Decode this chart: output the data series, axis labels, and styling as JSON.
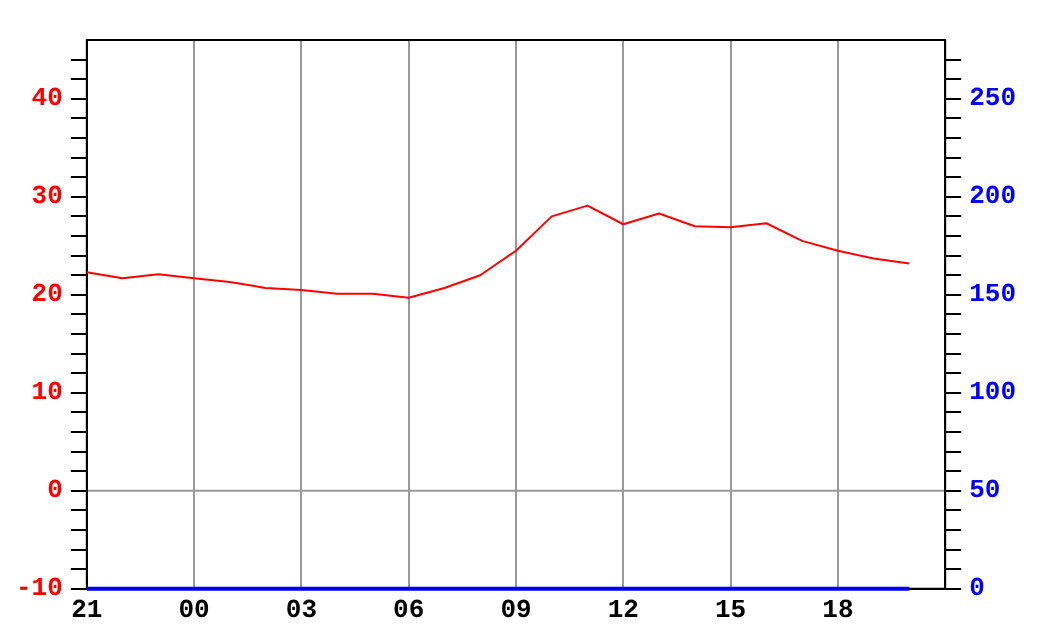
{
  "chart_data": {
    "type": "line",
    "categories": [
      "21",
      null,
      null,
      "00",
      null,
      null,
      "03",
      null,
      null,
      "06",
      null,
      null,
      "09",
      null,
      null,
      "12",
      null,
      null,
      "15",
      null,
      null,
      "18",
      null,
      null,
      null
    ],
    "series": [
      {
        "color": "#ff0000",
        "values": [
          22.3,
          21.7,
          22.1,
          21.7,
          21.3,
          20.7,
          20.5,
          20.1,
          20.1,
          19.7,
          20.7,
          22,
          24.5,
          28,
          29.1,
          27.2,
          28.3,
          27,
          26.9,
          27.3,
          25.5,
          24.5,
          23.7,
          23.2,
          null
        ]
      },
      {
        "color": "#0000ff",
        "axis": "y2",
        "values": [
          0,
          0,
          0,
          0,
          0,
          0,
          0,
          0,
          0,
          0,
          0,
          0,
          0,
          0,
          0,
          0,
          0,
          0,
          0,
          0,
          0,
          0,
          0,
          0,
          null
        ]
      }
    ],
    "ylim": [
      -10,
      46
    ],
    "yticks": [
      -10,
      {
        "value": -8,
        "label": null
      },
      {
        "value": -6,
        "label": null
      },
      {
        "value": -4,
        "label": null
      },
      {
        "value": -2,
        "label": null
      },
      0,
      {
        "value": 2,
        "label": null
      },
      {
        "value": 4,
        "label": null
      },
      {
        "value": 6,
        "label": null
      },
      {
        "value": 8,
        "label": null
      },
      10,
      {
        "value": 12,
        "label": null
      },
      {
        "value": 14,
        "label": null
      },
      {
        "value": 16,
        "label": null
      },
      {
        "value": 18,
        "label": null
      },
      20,
      {
        "value": 22,
        "label": null
      },
      {
        "value": 24,
        "label": null
      },
      {
        "value": 26,
        "label": null
      },
      {
        "value": 28,
        "label": null
      },
      30,
      {
        "value": 32,
        "label": null
      },
      {
        "value": 34,
        "label": null
      },
      {
        "value": 36,
        "label": null
      },
      {
        "value": 38,
        "label": null
      },
      40,
      {
        "value": 42,
        "label": null
      },
      {
        "value": 44,
        "label": null
      }
    ],
    "y2lim": [
      0,
      280
    ],
    "y2ticks": [
      0,
      {
        "value": 10,
        "label": null
      },
      {
        "value": 20,
        "label": null
      },
      {
        "value": 30,
        "label": null
      },
      {
        "value": 40,
        "label": null
      },
      50,
      {
        "value": 60,
        "label": null
      },
      {
        "value": 70,
        "label": null
      },
      {
        "value": 80,
        "label": null
      },
      {
        "value": 90,
        "label": null
      },
      100,
      {
        "value": 110,
        "label": null
      },
      {
        "value": 120,
        "label": null
      },
      {
        "value": 130,
        "label": null
      },
      {
        "value": 140,
        "label": null
      },
      150,
      {
        "value": 160,
        "label": null
      },
      {
        "value": 170,
        "label": null
      },
      {
        "value": 180,
        "label": null
      },
      {
        "value": 190,
        "label": null
      },
      200,
      {
        "value": 210,
        "label": null
      },
      {
        "value": 220,
        "label": null
      },
      {
        "value": 230,
        "label": null
      },
      {
        "value": 240,
        "label": null
      },
      250,
      {
        "value": 260,
        "label": null
      },
      {
        "value": 270,
        "label": null
      }
    ],
    "ref_lines": [
      {
        "axis": "y",
        "value": 0,
        "color": "#999999"
      }
    ],
    "grid": "x",
    "legend": false,
    "marker": "none",
    "line_style": "solid"
  }
}
